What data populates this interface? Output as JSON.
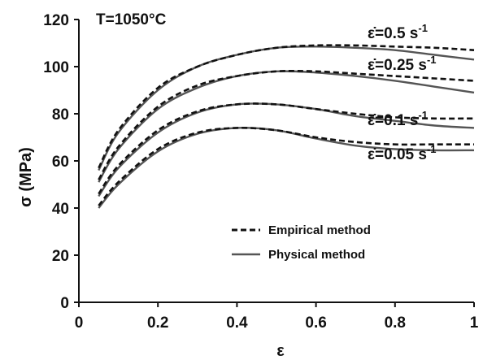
{
  "chart_data": {
    "type": "line",
    "annotation": "T=1050°C",
    "xlabel": "ε",
    "ylabel": "σ (MPa)",
    "xlim": [
      0,
      1
    ],
    "ylim": [
      0,
      120
    ],
    "xticks": [
      "0",
      "0.2",
      "0.4",
      "0.6",
      "0.8",
      "1"
    ],
    "yticks": [
      "0",
      "20",
      "40",
      "60",
      "80",
      "100",
      "120"
    ],
    "grid": false,
    "legend_position": "bottom-center",
    "legend": [
      {
        "label": "Empirical method",
        "style": "dashed",
        "color": "#111111"
      },
      {
        "label": "Physical method",
        "style": "solid",
        "color": "#555555"
      }
    ],
    "rate_labels": [
      {
        "text": "ε̇=0.5 s-1",
        "rate": "0.5 s-1"
      },
      {
        "text": "ε̇=0.25 s-1",
        "rate": "0.25 s-1"
      },
      {
        "text": "ε̇=0.1 s-1",
        "rate": "0.1 s-1"
      },
      {
        "text": "ε̇=0.05 s-1",
        "rate": "0.05 s-1"
      }
    ],
    "x": [
      0.05,
      0.1,
      0.2,
      0.3,
      0.4,
      0.5,
      0.6,
      0.7,
      0.8,
      0.9,
      1.0
    ],
    "series": [
      {
        "name": "Empirical method",
        "rate": "0.5 s-1",
        "values": [
          57,
          73,
          91,
          100,
          105,
          108,
          109,
          109,
          108.5,
          108,
          107
        ]
      },
      {
        "name": "Physical method",
        "rate": "0.5 s-1",
        "values": [
          56,
          72,
          90,
          100,
          105,
          108,
          108.5,
          108,
          107,
          105,
          103
        ]
      },
      {
        "name": "Empirical method",
        "rate": "0.25 s-1",
        "values": [
          52,
          66,
          83,
          92,
          96,
          98,
          98,
          97,
          96,
          95,
          94
        ]
      },
      {
        "name": "Physical method",
        "rate": "0.25 s-1",
        "values": [
          51,
          65,
          82,
          91,
          96,
          98,
          97.5,
          96,
          94,
          91.5,
          89
        ]
      },
      {
        "name": "Empirical method",
        "rate": "0.1 s-1",
        "values": [
          46,
          58,
          73,
          81,
          84,
          84,
          82,
          80,
          78.5,
          78,
          78
        ]
      },
      {
        "name": "Physical method",
        "rate": "0.1 s-1",
        "values": [
          45,
          57,
          72,
          80.5,
          84,
          84,
          82,
          79,
          77,
          75,
          74
        ]
      },
      {
        "name": "Empirical method",
        "rate": "0.05 s-1",
        "values": [
          41,
          51,
          65,
          72,
          74,
          73,
          70,
          68,
          67,
          67,
          67
        ]
      },
      {
        "name": "Physical method",
        "rate": "0.05 s-1",
        "values": [
          40,
          50,
          64,
          71.5,
          74,
          73,
          69.5,
          66.5,
          65,
          64.5,
          64.5
        ]
      }
    ]
  }
}
